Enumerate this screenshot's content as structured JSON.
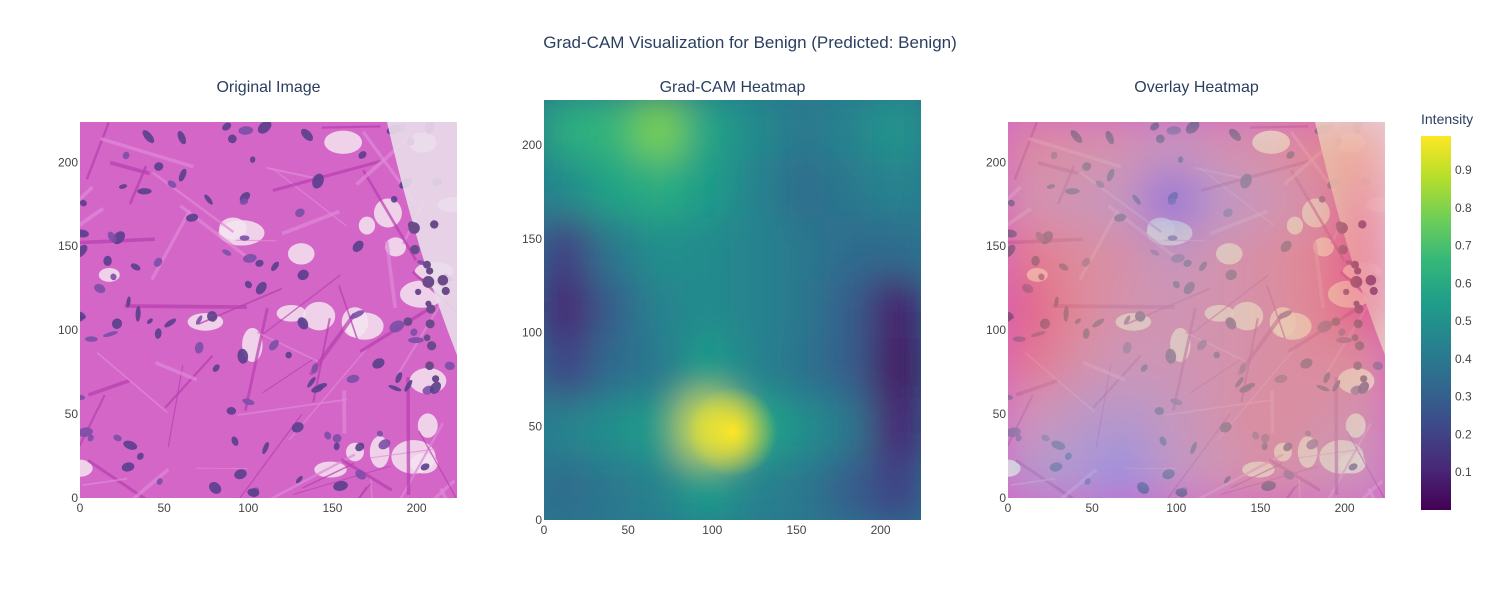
{
  "title": "Grad-CAM Visualization for Benign (Predicted: Benign)",
  "colors": {
    "text": "#2a3f5f",
    "tick": "#444444",
    "stain_pink": "#d466c8",
    "stain_purple": "#5a3f8c",
    "viridis": [
      "#440154",
      "#482878",
      "#3e4989",
      "#31688e",
      "#26828e",
      "#1f9e89",
      "#35b779",
      "#6ece58",
      "#b5de2b",
      "#fde725"
    ]
  },
  "chart_data": [
    {
      "type": "image",
      "title": "Original Image",
      "image_description_icon": "histology-he-stain",
      "x_ticks": [
        "0",
        "50",
        "100",
        "150",
        "200"
      ],
      "y_ticks": [
        "0",
        "50",
        "100",
        "150",
        "200"
      ],
      "xlim": [
        0,
        224
      ],
      "ylim": [
        224,
        0
      ]
    },
    {
      "type": "heatmap",
      "title": "Grad-CAM Heatmap",
      "x_ticks": [
        "0",
        "50",
        "100",
        "150",
        "200"
      ],
      "y_ticks": [
        "0",
        "50",
        "100",
        "150",
        "200"
      ],
      "xlim": [
        0,
        224
      ],
      "ylim": [
        0,
        224
      ],
      "grid_values_top_to_bottom": [
        [
          0.62,
          0.66,
          0.8,
          0.58,
          0.48,
          0.4,
          0.45,
          0.52
        ],
        [
          0.48,
          0.58,
          0.62,
          0.55,
          0.45,
          0.35,
          0.4,
          0.45
        ],
        [
          0.18,
          0.4,
          0.5,
          0.48,
          0.45,
          0.4,
          0.35,
          0.35
        ],
        [
          0.1,
          0.3,
          0.45,
          0.48,
          0.45,
          0.4,
          0.3,
          0.08
        ],
        [
          0.2,
          0.35,
          0.4,
          0.55,
          0.45,
          0.38,
          0.3,
          0.05
        ],
        [
          0.45,
          0.5,
          0.55,
          0.95,
          0.6,
          0.5,
          0.4,
          0.1
        ],
        [
          0.35,
          0.4,
          0.45,
          0.55,
          0.45,
          0.4,
          0.3,
          0.2
        ]
      ]
    },
    {
      "type": "image",
      "title": "Overlay Heatmap",
      "x_ticks": [
        "0",
        "50",
        "100",
        "150",
        "200"
      ],
      "y_ticks": [
        "0",
        "50",
        "100",
        "150",
        "200"
      ],
      "xlim": [
        0,
        224
      ],
      "ylim": [
        224,
        0
      ],
      "colorbar": {
        "title": "Intensity",
        "ticks": [
          "0.1",
          "0.2",
          "0.3",
          "0.4",
          "0.5",
          "0.6",
          "0.7",
          "0.8",
          "0.9"
        ],
        "range": [
          0.0,
          0.99
        ]
      }
    }
  ]
}
